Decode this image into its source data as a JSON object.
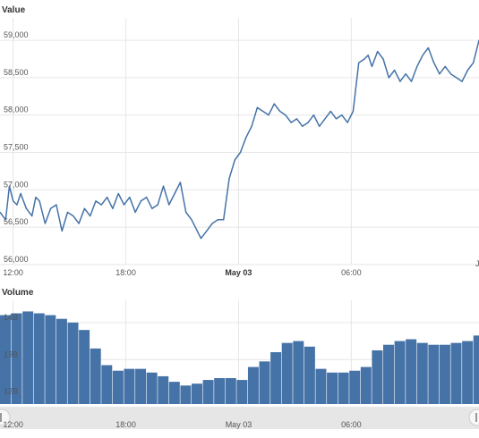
{
  "chart_data": [
    {
      "type": "line",
      "title": "Value",
      "ylabel": "Value",
      "ylim": [
        56000,
        59300
      ],
      "yticks": [
        "56,000",
        "56,500",
        "57,000",
        "57,500",
        "58,000",
        "58,500",
        "59,000"
      ],
      "ytick_values": [
        56000,
        56500,
        57000,
        57500,
        58000,
        58500,
        59000
      ],
      "xticks": [
        "12:00",
        "18:00",
        "May 03",
        "06:00"
      ],
      "xtick_hours": [
        12,
        18,
        24,
        30
      ],
      "xlim_hours": [
        11.3,
        36.8
      ],
      "edge_label": "J",
      "grid": true,
      "color": "#4572A7",
      "series": [
        {
          "x_hours": [
            11.3,
            11.6,
            11.8,
            12.0,
            12.2,
            12.4,
            12.7,
            13.0,
            13.2,
            13.4,
            13.7,
            14.0,
            14.3,
            14.6,
            14.9,
            15.2,
            15.5,
            15.8,
            16.1,
            16.4,
            16.7,
            17.0,
            17.3,
            17.6,
            17.9,
            18.2,
            18.5,
            18.8,
            19.1,
            19.4,
            19.7,
            20.0,
            20.3,
            20.6,
            20.9,
            21.2,
            21.5,
            21.8,
            22.0,
            22.3,
            22.6,
            22.9,
            23.2,
            23.5,
            23.8,
            24.1,
            24.4,
            24.7,
            25.0,
            25.3,
            25.6,
            25.9,
            26.2,
            26.5,
            26.8,
            27.1,
            27.4,
            27.7,
            28.0,
            28.3,
            28.6,
            28.9,
            29.2,
            29.5,
            29.8,
            30.1,
            30.4,
            30.7,
            30.9,
            31.1,
            31.4,
            31.7,
            32.0,
            32.3,
            32.6,
            32.9,
            33.2,
            33.5,
            33.8,
            34.1,
            34.4,
            34.7,
            35.0,
            35.3,
            35.6,
            35.9,
            36.2,
            36.5,
            36.8
          ],
          "values": [
            56700,
            56600,
            57050,
            56850,
            56800,
            56950,
            56750,
            56650,
            56900,
            56850,
            56550,
            56750,
            56800,
            56450,
            56700,
            56650,
            56550,
            56750,
            56650,
            56850,
            56800,
            56900,
            56750,
            56950,
            56800,
            56900,
            56700,
            56850,
            56900,
            56750,
            56800,
            57050,
            56800,
            56950,
            57100,
            56700,
            56600,
            56450,
            56350,
            56450,
            56550,
            56600,
            56600,
            57150,
            57400,
            57500,
            57700,
            57850,
            58100,
            58050,
            58000,
            58150,
            58050,
            58000,
            57900,
            57950,
            57850,
            57900,
            58000,
            57850,
            57950,
            58050,
            57950,
            58000,
            57900,
            58050,
            58700,
            58750,
            58800,
            58650,
            58850,
            58750,
            58500,
            58600,
            58450,
            58550,
            58450,
            58650,
            58800,
            58900,
            58700,
            58550,
            58650,
            58550,
            58500,
            58450,
            58600,
            58700,
            59000
          ]
        }
      ]
    },
    {
      "type": "bar",
      "title": "Volume",
      "ylabel": "Volume",
      "yticks": [
        "12B",
        "13B",
        "14B"
      ],
      "ytick_values": [
        12,
        13,
        14
      ],
      "ylim": [
        11.8,
        14.6
      ],
      "unit": "B",
      "xticks": [
        "12:00",
        "18:00",
        "May 03",
        "06:00"
      ],
      "xtick_hours": [
        12,
        18,
        24,
        30
      ],
      "xlim_hours": [
        11.3,
        36.8
      ],
      "grid": true,
      "color": "#4572A7",
      "series": [
        {
          "x_hours": [
            11.3,
            11.9,
            12.5,
            13.1,
            13.7,
            14.3,
            14.9,
            15.5,
            16.1,
            16.7,
            17.3,
            17.9,
            18.5,
            19.1,
            19.7,
            20.3,
            20.9,
            21.5,
            22.1,
            22.7,
            23.3,
            23.9,
            24.5,
            25.1,
            25.7,
            26.3,
            26.9,
            27.5,
            28.1,
            28.7,
            29.3,
            29.9,
            30.5,
            31.1,
            31.7,
            32.3,
            32.9,
            33.5,
            34.1,
            34.7,
            35.3,
            35.9,
            36.5
          ],
          "values": [
            14.2,
            14.25,
            14.3,
            14.25,
            14.2,
            14.1,
            14.0,
            13.8,
            13.3,
            12.85,
            12.7,
            12.75,
            12.75,
            12.65,
            12.55,
            12.4,
            12.3,
            12.35,
            12.45,
            12.5,
            12.5,
            12.45,
            12.8,
            12.95,
            13.2,
            13.45,
            13.5,
            13.35,
            12.75,
            12.65,
            12.65,
            12.7,
            12.8,
            13.25,
            13.4,
            13.5,
            13.55,
            13.45,
            13.4,
            13.4,
            13.45,
            13.5,
            13.65
          ]
        }
      ]
    }
  ]
}
